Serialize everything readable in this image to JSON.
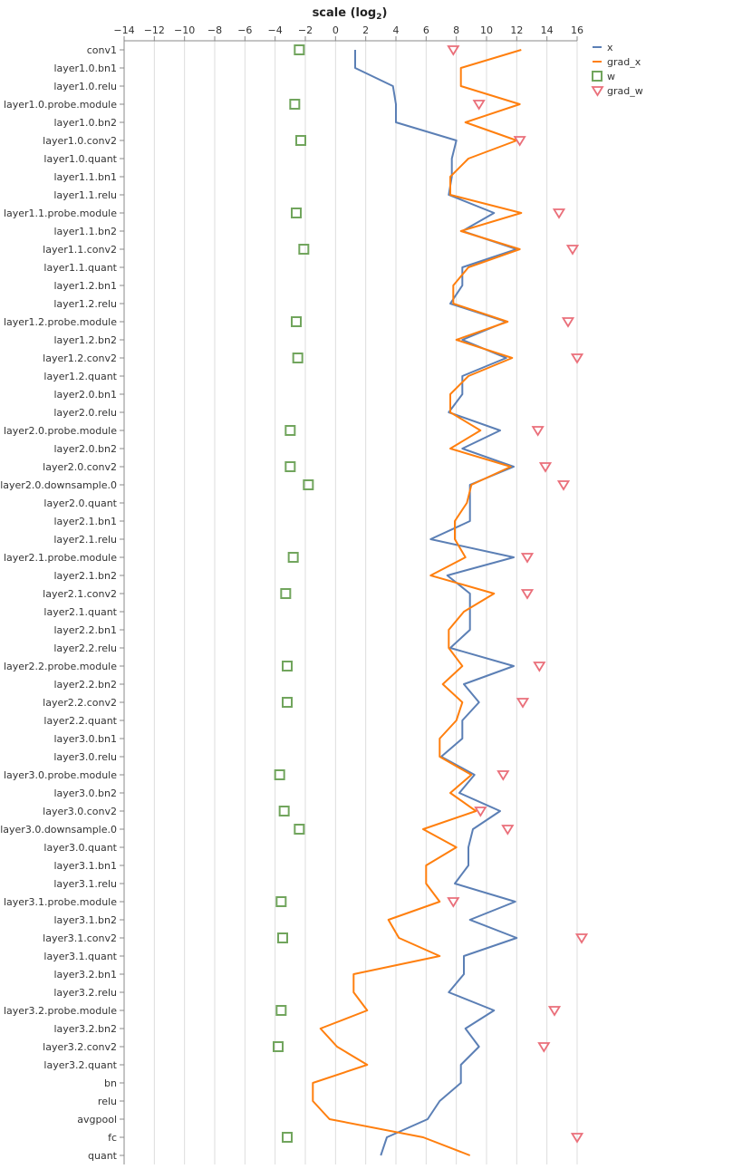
{
  "chart_data": {
    "type": "line",
    "title": "",
    "xlabel": "scale (log",
    "xlabel_sub": "2",
    "xlabel_end": ")",
    "ylabel": "",
    "xlim": [
      -14.0,
      16.0
    ],
    "x_ticks": [
      -14,
      -12,
      -10,
      -8,
      -6,
      -4,
      -2,
      0,
      2,
      4,
      6,
      8,
      10,
      12,
      14,
      16
    ],
    "x_tick_labels": [
      "−14",
      "−12",
      "−10",
      "−8",
      "−6",
      "−4",
      "−2",
      "0",
      "2",
      "4",
      "6",
      "8",
      "10",
      "12",
      "14",
      "16"
    ],
    "grid": true,
    "legend_position": "top-right",
    "categories": [
      "conv1",
      "layer1.0.bn1",
      "layer1.0.relu",
      "layer1.0.probe.module",
      "layer1.0.bn2",
      "layer1.0.conv2",
      "layer1.0.quant",
      "layer1.1.bn1",
      "layer1.1.relu",
      "layer1.1.probe.module",
      "layer1.1.bn2",
      "layer1.1.conv2",
      "layer1.1.quant",
      "layer1.2.bn1",
      "layer1.2.relu",
      "layer1.2.probe.module",
      "layer1.2.bn2",
      "layer1.2.conv2",
      "layer1.2.quant",
      "layer2.0.bn1",
      "layer2.0.relu",
      "layer2.0.probe.module",
      "layer2.0.bn2",
      "layer2.0.conv2",
      "layer2.0.downsample.0",
      "layer2.0.quant",
      "layer2.1.bn1",
      "layer2.1.relu",
      "layer2.1.probe.module",
      "layer2.1.bn2",
      "layer2.1.conv2",
      "layer2.1.quant",
      "layer2.2.bn1",
      "layer2.2.relu",
      "layer2.2.probe.module",
      "layer2.2.bn2",
      "layer2.2.conv2",
      "layer2.2.quant",
      "layer3.0.bn1",
      "layer3.0.relu",
      "layer3.0.probe.module",
      "layer3.0.bn2",
      "layer3.0.conv2",
      "layer3.0.downsample.0",
      "layer3.0.quant",
      "layer3.1.bn1",
      "layer3.1.relu",
      "layer3.1.probe.module",
      "layer3.1.bn2",
      "layer3.1.conv2",
      "layer3.1.quant",
      "layer3.2.bn1",
      "layer3.2.relu",
      "layer3.2.probe.module",
      "layer3.2.bn2",
      "layer3.2.conv2",
      "layer3.2.quant",
      "bn",
      "relu",
      "avgpool",
      "fc",
      "quant"
    ],
    "series": [
      {
        "name": "x",
        "kind": "line",
        "color": "#5b7fb5",
        "values": [
          1.3,
          1.3,
          3.8,
          4.0,
          4.0,
          8.0,
          7.7,
          7.7,
          7.5,
          10.5,
          8.4,
          12.0,
          8.4,
          8.4,
          7.6,
          11.3,
          8.4,
          11.3,
          8.4,
          8.4,
          7.5,
          10.9,
          8.4,
          11.8,
          8.9,
          8.9,
          8.9,
          6.3,
          11.8,
          7.4,
          8.9,
          8.9,
          8.9,
          7.6,
          11.8,
          8.5,
          9.5,
          8.4,
          8.4,
          7.0,
          9.2,
          8.2,
          10.9,
          9.1,
          8.8,
          8.8,
          7.9,
          11.9,
          8.9,
          12.0,
          8.5,
          8.5,
          7.5,
          10.5,
          8.6,
          9.5,
          8.3,
          8.3,
          6.9,
          6.1,
          3.4,
          3.0
        ]
      },
      {
        "name": "grad_x",
        "kind": "line",
        "color": "#ff7f0e",
        "values": [
          12.3,
          8.3,
          8.3,
          12.2,
          8.6,
          12.0,
          8.8,
          7.6,
          7.6,
          12.3,
          8.3,
          12.2,
          8.8,
          7.8,
          7.8,
          11.4,
          8.0,
          11.7,
          8.8,
          7.6,
          7.6,
          9.6,
          7.6,
          11.6,
          9.0,
          8.7,
          7.9,
          7.9,
          8.6,
          6.3,
          10.5,
          8.5,
          7.5,
          7.5,
          8.4,
          7.1,
          8.4,
          8.0,
          6.9,
          6.9,
          9.0,
          7.6,
          9.3,
          5.8,
          8.0,
          6.0,
          6.0,
          6.9,
          3.5,
          4.2,
          6.9,
          1.2,
          1.2,
          2.1,
          -1.0,
          0.1,
          2.1,
          -1.5,
          -1.5,
          -0.4,
          5.8,
          8.9
        ]
      },
      {
        "name": "w",
        "kind": "square",
        "color": "#71a55d",
        "values": [
          -2.4,
          null,
          null,
          -2.7,
          null,
          -2.3,
          null,
          null,
          null,
          -2.6,
          null,
          -2.1,
          null,
          null,
          null,
          -2.6,
          null,
          -2.5,
          null,
          null,
          null,
          -3.0,
          null,
          -3.0,
          -1.8,
          null,
          null,
          null,
          -2.8,
          null,
          -3.3,
          null,
          null,
          null,
          -3.2,
          null,
          -3.2,
          null,
          null,
          null,
          -3.7,
          null,
          -3.4,
          -2.4,
          null,
          null,
          null,
          -3.6,
          null,
          -3.5,
          null,
          null,
          null,
          -3.6,
          null,
          -3.8,
          null,
          null,
          null,
          null,
          -3.2,
          null
        ]
      },
      {
        "name": "grad_w",
        "kind": "triangle",
        "color": "#ea6f7a",
        "values": [
          7.8,
          null,
          null,
          9.5,
          null,
          12.2,
          null,
          null,
          null,
          14.8,
          null,
          15.7,
          null,
          null,
          null,
          15.4,
          null,
          16.0,
          null,
          null,
          null,
          13.4,
          null,
          13.9,
          15.1,
          null,
          null,
          null,
          12.7,
          null,
          12.7,
          null,
          null,
          null,
          13.5,
          null,
          12.4,
          null,
          null,
          null,
          11.1,
          null,
          9.6,
          11.4,
          null,
          null,
          null,
          7.8,
          null,
          16.3,
          null,
          null,
          null,
          14.5,
          null,
          13.8,
          null,
          null,
          null,
          null,
          16.0,
          null
        ]
      }
    ]
  }
}
